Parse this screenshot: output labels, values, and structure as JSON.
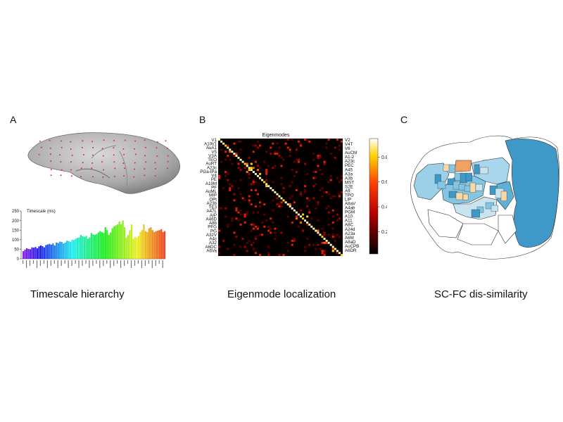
{
  "panels": {
    "a": {
      "label": "A",
      "caption": "Timescale hierarchy",
      "chart_title": "Timescale (ms)"
    },
    "b": {
      "label": "B",
      "caption": "Eigenmode localization",
      "chart_title": "Eigenmodes"
    },
    "c": {
      "label": "C",
      "caption": "SC-FC dis-similarity"
    }
  },
  "chart_data": [
    {
      "type": "bar",
      "title": "Timescale (ms)",
      "ylim": [
        0,
        250
      ],
      "yticks": [
        0,
        50,
        100,
        150,
        200,
        250
      ],
      "colormap": "rainbow (purple to red)",
      "values": [
        40,
        48,
        55,
        52,
        50,
        60,
        58,
        62,
        55,
        65,
        70,
        66,
        60,
        72,
        75,
        78,
        74,
        80,
        70,
        85,
        82,
        90,
        88,
        80,
        85,
        95,
        92,
        88,
        100,
        98,
        105,
        110,
        112,
        125,
        118,
        115,
        120,
        105,
        112,
        135,
        128,
        125,
        130,
        138,
        145,
        140,
        135,
        165,
        150,
        125,
        138,
        160,
        170,
        175,
        180,
        195,
        180,
        200,
        165,
        110,
        125,
        150,
        180,
        105,
        115,
        110,
        120,
        140,
        150,
        180,
        145,
        140,
        160,
        165,
        150,
        140,
        145,
        148,
        150,
        155,
        140,
        145,
        150,
        145,
        140
      ]
    },
    {
      "type": "heatmap",
      "title": "Eigenmodes",
      "colorbar_ticks": [
        0.2,
        0.4,
        0.6,
        0.8
      ],
      "left_labels": [
        "V1",
        "A10t/1",
        "AuA1",
        "V5",
        "V3A",
        "TEO",
        "AuRT",
        "A23c",
        "PGa-IPa",
        "V4",
        "PE",
        "A19M",
        "PF",
        "AuML",
        "MIP",
        "OPt",
        "A23b",
        "TE3",
        "A47L",
        "AIP",
        "A46D",
        "A8b",
        "PFG",
        "PG",
        "A32V",
        "A4c",
        "A32",
        "A6DC",
        "A6Va"
      ],
      "right_labels": [
        "V2",
        "V4T",
        "V6",
        "AuCM",
        "A1-2",
        "A23c",
        "PEC",
        "A45",
        "A3a",
        "A3b",
        "MST",
        "S2E",
        "A9",
        "TPO",
        "LIP",
        "A8aV",
        "A4ab",
        "PGM",
        "A10",
        "A11",
        "A8C",
        "A24d",
        "A23a",
        "A6M",
        "A8aD",
        "AuCPB",
        "A6DR"
      ]
    },
    {
      "type": "map",
      "title": "SC-FC dis-similarity",
      "color_scale": [
        "#ffffff",
        "#c9e4f1",
        "#84c6e2",
        "#3e98c8",
        "#f7d9a8",
        "#f2a260",
        "#e46a2e"
      ]
    }
  ]
}
